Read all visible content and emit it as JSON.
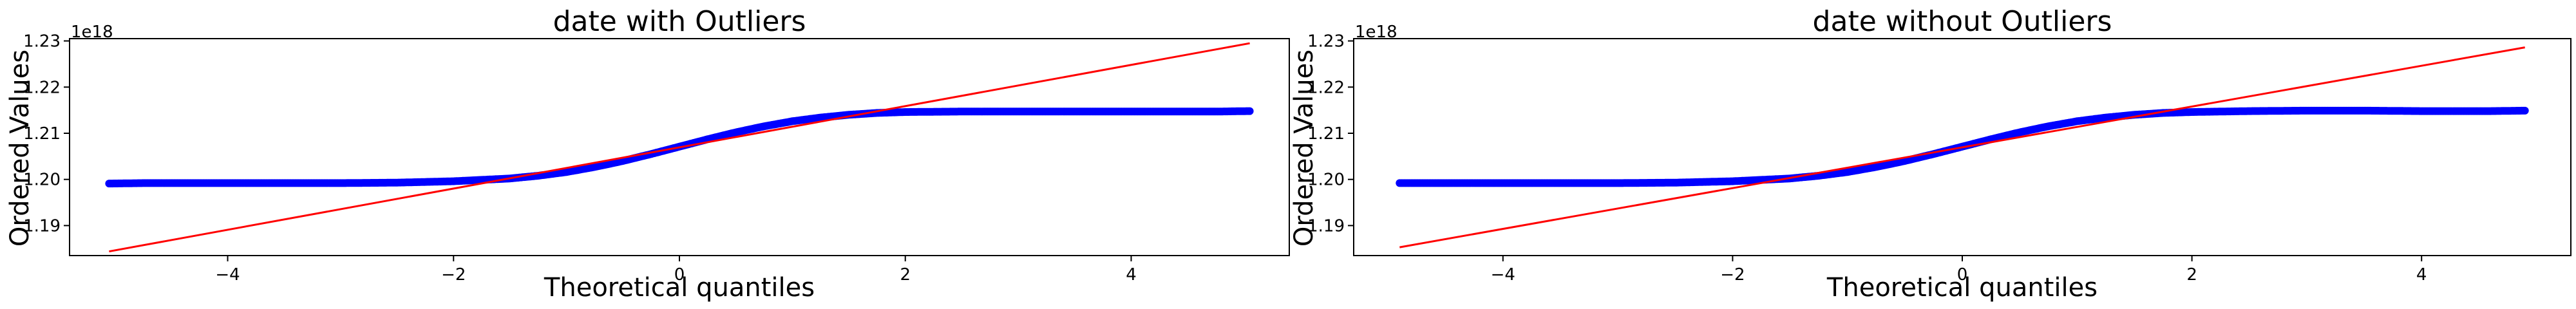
{
  "colors": {
    "points": "#0000ff",
    "fit_line": "#ff0000",
    "axes": "#000000",
    "background": "#ffffff"
  },
  "chart_data": [
    {
      "type": "scatter",
      "title": "date with Outliers",
      "xlabel": "Theoretical quantiles",
      "ylabel": "Ordered Values",
      "offset_text": "1e18",
      "xlim": [
        -5.4,
        5.4
      ],
      "ylim": [
        1.1835,
        1.2305
      ],
      "xticks": [
        -4,
        -2,
        0,
        2,
        4
      ],
      "xtick_labels": [
        "−4",
        "−2",
        "0",
        "2",
        "4"
      ],
      "yticks": [
        1.19,
        1.2,
        1.21,
        1.22,
        1.23
      ],
      "ytick_labels": [
        "1.19",
        "1.20",
        "1.21",
        "1.22",
        "1.23"
      ],
      "grid": false,
      "fit_line": {
        "x": [
          -5.05,
          5.05
        ],
        "y": [
          1.1844,
          1.2295
        ]
      },
      "points": {
        "x": [
          -5.05,
          -4.75,
          -4.6,
          -4.5,
          -4.4,
          -4.3,
          -4.0,
          -3.5,
          -3.0,
          -2.5,
          -2.0,
          -1.75,
          -1.5,
          -1.25,
          -1.0,
          -0.75,
          -0.5,
          -0.25,
          0.0,
          0.25,
          0.5,
          0.75,
          1.0,
          1.25,
          1.5,
          1.75,
          2.0,
          2.5,
          3.0,
          3.5,
          4.0,
          4.3,
          4.4,
          4.5,
          4.6,
          4.75,
          5.05
        ],
        "y": [
          1.1991,
          1.1992,
          1.1992,
          1.1992,
          1.1992,
          1.1992,
          1.1992,
          1.1992,
          1.1992,
          1.1993,
          1.1996,
          1.1999,
          1.2002,
          1.2008,
          1.2016,
          1.2027,
          1.204,
          1.2055,
          1.2071,
          1.2087,
          1.2102,
          1.2115,
          1.2126,
          1.2134,
          1.214,
          1.2144,
          1.2146,
          1.2147,
          1.2147,
          1.2147,
          1.2147,
          1.2147,
          1.2147,
          1.2147,
          1.2147,
          1.2147,
          1.2148
        ]
      }
    },
    {
      "type": "scatter",
      "title": "date without Outliers",
      "xlabel": "Theoretical quantiles",
      "ylabel": "Ordered Values",
      "offset_text": "1e18",
      "xlim": [
        -5.3,
        5.3
      ],
      "ylim": [
        1.1835,
        1.2305
      ],
      "xticks": [
        -4,
        -2,
        0,
        2,
        4
      ],
      "xtick_labels": [
        "−4",
        "−2",
        "0",
        "2",
        "4"
      ],
      "yticks": [
        1.19,
        1.2,
        1.21,
        1.22,
        1.23
      ],
      "ytick_labels": [
        "1.19",
        "1.20",
        "1.21",
        "1.22",
        "1.23"
      ],
      "grid": false,
      "fit_line": {
        "x": [
          -4.9,
          4.9
        ],
        "y": [
          1.1853,
          1.2286
        ]
      },
      "points": {
        "x": [
          -4.9,
          -4.6,
          -4.45,
          -4.35,
          -4.25,
          -4.15,
          -4.0,
          -3.5,
          -3.0,
          -2.5,
          -2.0,
          -1.75,
          -1.5,
          -1.25,
          -1.0,
          -0.75,
          -0.5,
          -0.25,
          0.0,
          0.25,
          0.5,
          0.75,
          1.0,
          1.25,
          1.5,
          1.75,
          2.0,
          2.5,
          3.0,
          3.5,
          4.0,
          4.15,
          4.25,
          4.35,
          4.45,
          4.6,
          4.9
        ],
        "y": [
          1.1992,
          1.1992,
          1.1992,
          1.1992,
          1.1992,
          1.1992,
          1.1992,
          1.1992,
          1.1992,
          1.1993,
          1.1996,
          1.1999,
          1.2002,
          1.2008,
          1.2016,
          1.2027,
          1.204,
          1.2055,
          1.2071,
          1.2087,
          1.2102,
          1.2115,
          1.2126,
          1.2134,
          1.214,
          1.2144,
          1.2146,
          1.2148,
          1.2149,
          1.2149,
          1.2148,
          1.2148,
          1.2148,
          1.2148,
          1.2148,
          1.2148,
          1.2149
        ]
      }
    }
  ]
}
